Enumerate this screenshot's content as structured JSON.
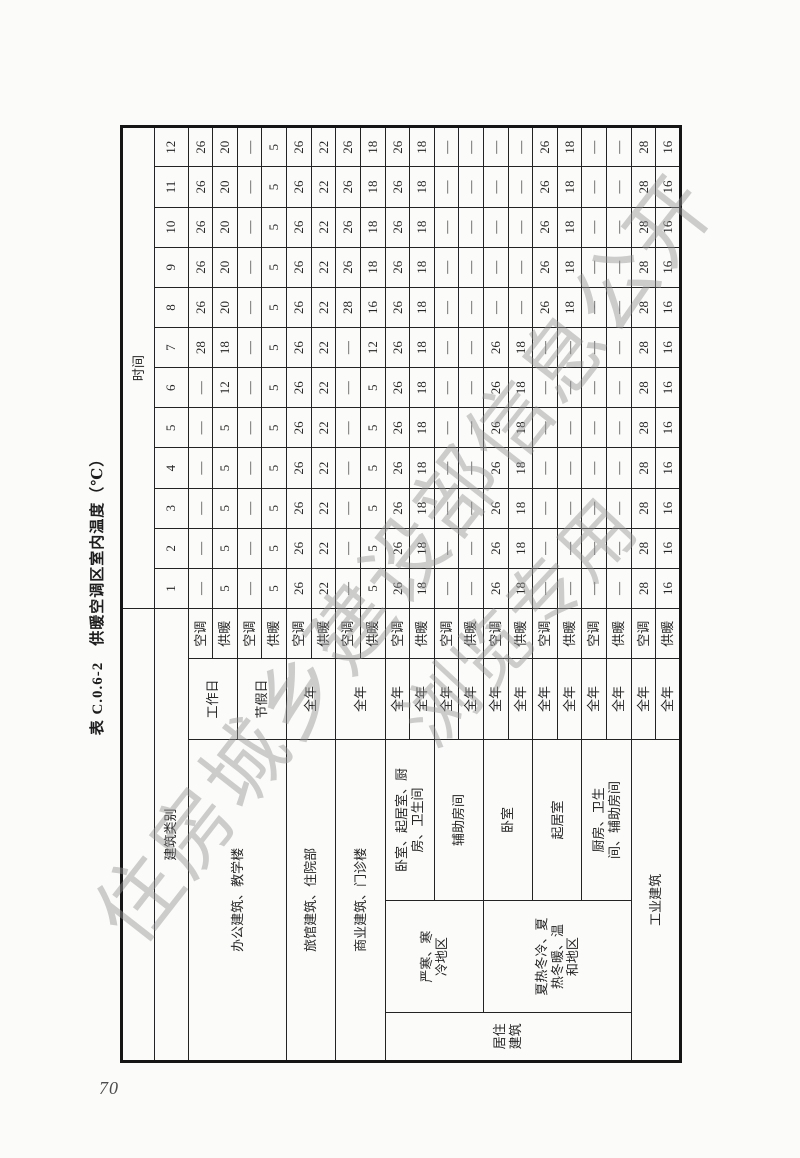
{
  "page_number": "70",
  "title": "表 C.0.6-2　供暖空调区室内温度（℃）",
  "watermark": {
    "line1": "住房城乡建设部信息公开",
    "line2": "浏览专用"
  },
  "colors": {
    "paper": "#fbfbfa",
    "line": "#232323",
    "watermark_gray": "#949494"
  },
  "table": {
    "corner_header": "建筑类别",
    "time_header": "时间",
    "hours": [
      "1",
      "2",
      "3",
      "4",
      "5",
      "6",
      "7",
      "8",
      "9",
      "10",
      "11",
      "12"
    ],
    "rows": [
      {
        "labels": [
          {
            "t": "办公建筑、教学楼",
            "rs": 4,
            "cs": 3,
            "n": "building-office-teaching"
          },
          {
            "t": "工作日",
            "rs": 2,
            "n": "period-workday"
          },
          {
            "t": "空调",
            "n": "mode-cooling"
          }
        ],
        "values": [
          "—",
          "—",
          "—",
          "—",
          "—",
          "—",
          "28",
          "26",
          "26",
          "26",
          "26",
          "26"
        ]
      },
      {
        "labels": [
          {
            "t": "供暖",
            "n": "mode-heating"
          }
        ],
        "values": [
          "5",
          "5",
          "5",
          "5",
          "5",
          "12",
          "18",
          "20",
          "20",
          "20",
          "20",
          "20"
        ]
      },
      {
        "labels": [
          {
            "t": "节假日",
            "rs": 2,
            "n": "period-holiday"
          },
          {
            "t": "空调",
            "n": "mode-cooling"
          }
        ],
        "values": [
          "—",
          "—",
          "—",
          "—",
          "—",
          "—",
          "—",
          "—",
          "—",
          "—",
          "—",
          "—"
        ]
      },
      {
        "labels": [
          {
            "t": "供暖",
            "n": "mode-heating"
          }
        ],
        "values": [
          "5",
          "5",
          "5",
          "5",
          "5",
          "5",
          "5",
          "5",
          "5",
          "5",
          "5",
          "5"
        ]
      },
      {
        "labels": [
          {
            "t": "旅馆建筑、住院部",
            "rs": 2,
            "cs": 3,
            "n": "building-hotel-inpatient"
          },
          {
            "t": "全年",
            "rs": 2,
            "n": "period-allyear"
          },
          {
            "t": "空调",
            "n": "mode-cooling"
          }
        ],
        "values": [
          "26",
          "26",
          "26",
          "26",
          "26",
          "26",
          "26",
          "26",
          "26",
          "26",
          "26",
          "26"
        ]
      },
      {
        "labels": [
          {
            "t": "供暖",
            "n": "mode-heating"
          }
        ],
        "values": [
          "22",
          "22",
          "22",
          "22",
          "22",
          "22",
          "22",
          "22",
          "22",
          "22",
          "22",
          "22"
        ]
      },
      {
        "labels": [
          {
            "t": "商业建筑、门诊楼",
            "rs": 2,
            "cs": 3,
            "n": "building-commercial-outpatient"
          },
          {
            "t": "全年",
            "rs": 2,
            "n": "period-allyear"
          },
          {
            "t": "空调",
            "n": "mode-cooling"
          }
        ],
        "values": [
          "—",
          "—",
          "—",
          "—",
          "—",
          "—",
          "—",
          "28",
          "26",
          "26",
          "26",
          "26"
        ]
      },
      {
        "labels": [
          {
            "t": "供暖",
            "n": "mode-heating"
          }
        ],
        "values": [
          "5",
          "5",
          "5",
          "5",
          "5",
          "5",
          "12",
          "16",
          "18",
          "18",
          "18",
          "18"
        ]
      },
      {
        "labels": [
          {
            "t": "居住\n建筑",
            "rs": 10,
            "n": "building-residential"
          },
          {
            "t": "严寒、寒\n冷地区",
            "rs": 4,
            "n": "region-severe-cold"
          },
          {
            "t": "卧室、起居室、厨\n房、卫生间",
            "rs": 2,
            "n": "room-bed-living-kitchen-bath"
          },
          {
            "t": "全年",
            "n": "period-allyear"
          },
          {
            "t": "空调",
            "n": "mode-cooling"
          }
        ],
        "values": [
          "26",
          "26",
          "26",
          "26",
          "26",
          "26",
          "26",
          "26",
          "26",
          "26",
          "26",
          "26"
        ]
      },
      {
        "labels": [
          {
            "t": "全年",
            "n": "period-allyear"
          },
          {
            "t": "供暖",
            "n": "mode-heating"
          }
        ],
        "values": [
          "18",
          "18",
          "18",
          "18",
          "18",
          "18",
          "18",
          "18",
          "18",
          "18",
          "18",
          "18"
        ]
      },
      {
        "labels": [
          {
            "t": "辅助房间",
            "rs": 2,
            "n": "room-auxiliary"
          },
          {
            "t": "全年",
            "n": "period-allyear"
          },
          {
            "t": "空调",
            "n": "mode-cooling"
          }
        ],
        "values": [
          "—",
          "—",
          "—",
          "—",
          "—",
          "—",
          "—",
          "—",
          "—",
          "—",
          "—",
          "—"
        ]
      },
      {
        "labels": [
          {
            "t": "全年",
            "n": "period-allyear"
          },
          {
            "t": "供暖",
            "n": "mode-heating"
          }
        ],
        "values": [
          "—",
          "—",
          "—",
          "—",
          "—",
          "—",
          "—",
          "—",
          "—",
          "—",
          "—",
          "—"
        ]
      },
      {
        "labels": [
          {
            "t": "夏热冬冷、夏\n热冬暖、温\n和地区",
            "rs": 6,
            "n": "region-hot-summer-mild"
          },
          {
            "t": "卧室",
            "rs": 2,
            "n": "room-bedroom"
          },
          {
            "t": "全年",
            "n": "period-allyear"
          },
          {
            "t": "空调",
            "n": "mode-cooling"
          }
        ],
        "values": [
          "26",
          "26",
          "26",
          "26",
          "26",
          "26",
          "26",
          "—",
          "—",
          "—",
          "—",
          "—"
        ]
      },
      {
        "labels": [
          {
            "t": "全年",
            "n": "period-allyear"
          },
          {
            "t": "供暖",
            "n": "mode-heating"
          }
        ],
        "values": [
          "18",
          "18",
          "18",
          "18",
          "18",
          "18",
          "18",
          "—",
          "—",
          "—",
          "—",
          "—"
        ]
      },
      {
        "labels": [
          {
            "t": "起居室",
            "rs": 2,
            "n": "room-livingroom"
          },
          {
            "t": "全年",
            "n": "period-allyear"
          },
          {
            "t": "空调",
            "n": "mode-cooling"
          }
        ],
        "values": [
          "—",
          "—",
          "—",
          "—",
          "—",
          "—",
          "—",
          "26",
          "26",
          "26",
          "26",
          "26"
        ]
      },
      {
        "labels": [
          {
            "t": "全年",
            "n": "period-allyear"
          },
          {
            "t": "供暖",
            "n": "mode-heating"
          }
        ],
        "values": [
          "—",
          "—",
          "—",
          "—",
          "—",
          "—",
          "—",
          "18",
          "18",
          "18",
          "18",
          "18"
        ]
      },
      {
        "labels": [
          {
            "t": "厨房、卫生\n间、辅助房间",
            "rs": 2,
            "n": "room-kitchen-bath-aux"
          },
          {
            "t": "全年",
            "n": "period-allyear"
          },
          {
            "t": "空调",
            "n": "mode-cooling"
          }
        ],
        "values": [
          "—",
          "—",
          "—",
          "—",
          "—",
          "—",
          "—",
          "—",
          "—",
          "—",
          "—",
          "—"
        ]
      },
      {
        "labels": [
          {
            "t": "全年",
            "n": "period-allyear"
          },
          {
            "t": "供暖",
            "n": "mode-heating"
          }
        ],
        "values": [
          "—",
          "—",
          "—",
          "—",
          "—",
          "—",
          "—",
          "—",
          "—",
          "—",
          "—",
          "—"
        ]
      },
      {
        "labels": [
          {
            "t": "工业建筑",
            "rs": 2,
            "cs": 3,
            "n": "building-industrial"
          },
          {
            "t": "全年",
            "n": "period-allyear"
          },
          {
            "t": "空调",
            "n": "mode-cooling"
          }
        ],
        "values": [
          "28",
          "28",
          "28",
          "28",
          "28",
          "28",
          "28",
          "28",
          "28",
          "28",
          "28",
          "28"
        ]
      },
      {
        "labels": [
          {
            "t": "全年",
            "n": "period-allyear"
          },
          {
            "t": "供暖",
            "n": "mode-heating"
          }
        ],
        "values": [
          "16",
          "16",
          "16",
          "16",
          "16",
          "16",
          "16",
          "16",
          "16",
          "16",
          "16",
          "16"
        ]
      }
    ]
  }
}
